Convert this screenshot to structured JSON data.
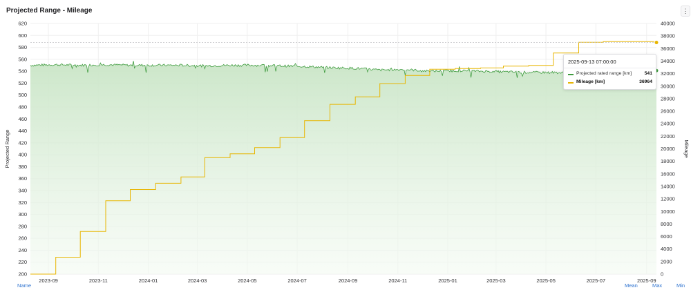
{
  "panel": {
    "title": "Projected Range - Mileage",
    "menu_icon": "vertical-ellipsis-icon"
  },
  "colors": {
    "range": "#3e9b3e",
    "range_fill_top": "#c9e5c6",
    "mileage": "#e8b500",
    "grid": "#efefef"
  },
  "legend": {
    "name": "Name",
    "mean": "Mean",
    "max": "Max",
    "min": "Min"
  },
  "tooltip": {
    "time": "2025-09-13 07:00:00",
    "rows": [
      {
        "label": "Projected rated range [km]",
        "value": "541"
      },
      {
        "label": "Mileage [km]",
        "value": "36964"
      }
    ]
  },
  "chart_data": {
    "type": "line",
    "title": "Projected Range - Mileage",
    "x_range": [
      "2023-08-10",
      "2025-09-13"
    ],
    "x_ticks": [
      "2023-09",
      "2023-11",
      "2024-01",
      "2024-03",
      "2024-05",
      "2024-07",
      "2024-09",
      "2024-11",
      "2025-01",
      "2025-03",
      "2025-05",
      "2025-07",
      "2025-09"
    ],
    "y_left": {
      "label": "Projected Range",
      "min": 200,
      "max": 620,
      "ticks": [
        200,
        220,
        240,
        260,
        280,
        300,
        320,
        340,
        360,
        380,
        400,
        420,
        440,
        460,
        480,
        500,
        520,
        540,
        560,
        580,
        600,
        620
      ]
    },
    "y_right": {
      "label": "Mileage",
      "min": 0,
      "max": 40000,
      "ticks": [
        0,
        2000,
        4000,
        6000,
        8000,
        10000,
        12000,
        14000,
        16000,
        18000,
        20000,
        22000,
        24000,
        26000,
        28000,
        30000,
        32000,
        34000,
        36000,
        38000,
        40000
      ]
    },
    "grid": true,
    "series": [
      {
        "name": "Projected rated range [km]",
        "axis": "left",
        "x": [
          "2023-08-10",
          "2023-09-10",
          "2023-10-10",
          "2023-11-10",
          "2023-12-10",
          "2024-01-10",
          "2024-02-10",
          "2024-03-10",
          "2024-04-10",
          "2024-05-10",
          "2024-06-10",
          "2024-07-10",
          "2024-08-10",
          "2024-09-10",
          "2024-10-10",
          "2024-11-10",
          "2024-12-10",
          "2025-01-10",
          "2025-02-10",
          "2025-03-10",
          "2025-04-10",
          "2025-05-10",
          "2025-06-10",
          "2025-07-10",
          "2025-08-10",
          "2025-09-13"
        ],
        "values": [
          550,
          551,
          550,
          551,
          550,
          550,
          550,
          549,
          550,
          550,
          549,
          548,
          546,
          545,
          542,
          543,
          540,
          541,
          540,
          539,
          538,
          538,
          536,
          538,
          539,
          541
        ]
      },
      {
        "name": "Mileage [km]",
        "axis": "right",
        "x": [
          "2023-08-10",
          "2023-09-10",
          "2023-10-10",
          "2023-11-10",
          "2023-12-10",
          "2024-01-10",
          "2024-02-10",
          "2024-03-10",
          "2024-04-10",
          "2024-05-10",
          "2024-06-10",
          "2024-07-10",
          "2024-08-10",
          "2024-09-10",
          "2024-10-10",
          "2024-11-10",
          "2024-12-10",
          "2025-01-10",
          "2025-02-10",
          "2025-03-10",
          "2025-04-10",
          "2025-05-10",
          "2025-06-10",
          "2025-07-10",
          "2025-08-10",
          "2025-09-13"
        ],
        "values": [
          0,
          2700,
          6800,
          11700,
          13500,
          14500,
          15500,
          18600,
          19200,
          20200,
          21800,
          24500,
          27100,
          28300,
          30400,
          31700,
          32700,
          32800,
          32900,
          33200,
          33300,
          35300,
          37000,
          37100,
          37100,
          36964
        ]
      }
    ]
  }
}
